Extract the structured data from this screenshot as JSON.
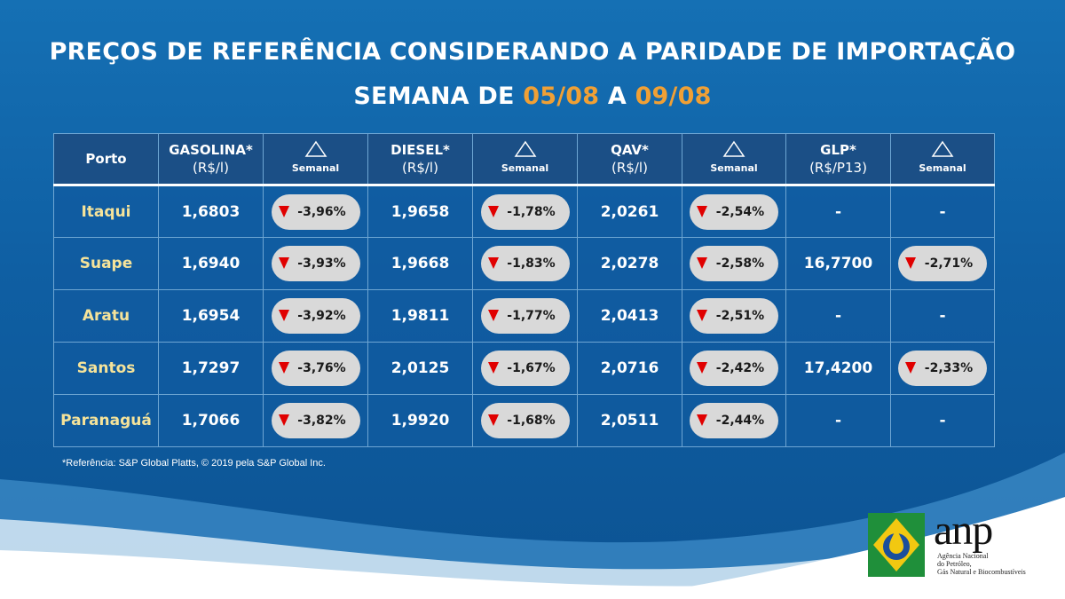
{
  "title": {
    "line1": "PREÇOS DE REFERÊNCIA CONSIDERANDO A PARIDADE DE IMPORTAÇÃO",
    "line2_prefix": "SEMANA DE",
    "date_start": "05/08",
    "line2_middle": "A",
    "date_end": "09/08"
  },
  "table": {
    "headers": {
      "port": "Porto",
      "gasolina": "GASOLINA*",
      "gasolina_unit": "(R$/l)",
      "diesel": "DIESEL*",
      "diesel_unit": "(R$/l)",
      "qav": "QAV*",
      "qav_unit": "(R$/l)",
      "glp": "GLP*",
      "glp_unit": "(R$/P13)",
      "weekly": "Semanal"
    },
    "rows": [
      {
        "port": "Itaqui",
        "gasolina": "1,6803",
        "gasolina_var": "-3,96%",
        "diesel": "1,9658",
        "diesel_var": "-1,78%",
        "qav": "2,0261",
        "qav_var": "-2,54%",
        "glp": "-",
        "glp_var": "-"
      },
      {
        "port": "Suape",
        "gasolina": "1,6940",
        "gasolina_var": "-3,93%",
        "diesel": "1,9668",
        "diesel_var": "-1,83%",
        "qav": "2,0278",
        "qav_var": "-2,58%",
        "glp": "16,7700",
        "glp_var": "-2,71%"
      },
      {
        "port": "Aratu",
        "gasolina": "1,6954",
        "gasolina_var": "-3,92%",
        "diesel": "1,9811",
        "diesel_var": "-1,77%",
        "qav": "2,0413",
        "qav_var": "-2,51%",
        "glp": "-",
        "glp_var": "-"
      },
      {
        "port": "Santos",
        "gasolina": "1,7297",
        "gasolina_var": "-3,76%",
        "diesel": "2,0125",
        "diesel_var": "-1,67%",
        "qav": "2,0716",
        "qav_var": "-2,42%",
        "glp": "17,4200",
        "glp_var": "-2,33%"
      },
      {
        "port": "Paranaguá",
        "gasolina": "1,7066",
        "gasolina_var": "-3,82%",
        "diesel": "1,9920",
        "diesel_var": "-1,68%",
        "qav": "2,0511",
        "qav_var": "-2,44%",
        "glp": "-",
        "glp_var": "-"
      }
    ]
  },
  "footnote": "*Referência: S&P Global Platts, © 2019 pela S&P Global Inc.",
  "logo": {
    "word": "anp",
    "sub_line1": "Agência Nacional",
    "sub_line2": "do Petróleo,",
    "sub_line3": "Gás Natural e Biocombustíveis"
  },
  "colors": {
    "background": "#0f5fa3",
    "header_bg": "#1b4f86",
    "port_text": "#f5e39a",
    "date_highlight": "#f0a035",
    "pill_bg": "#d9d9d9",
    "down_arrow": "#e00000"
  },
  "icons": {
    "delta": "triangle-outline-icon",
    "down": "down-triangle-icon"
  }
}
